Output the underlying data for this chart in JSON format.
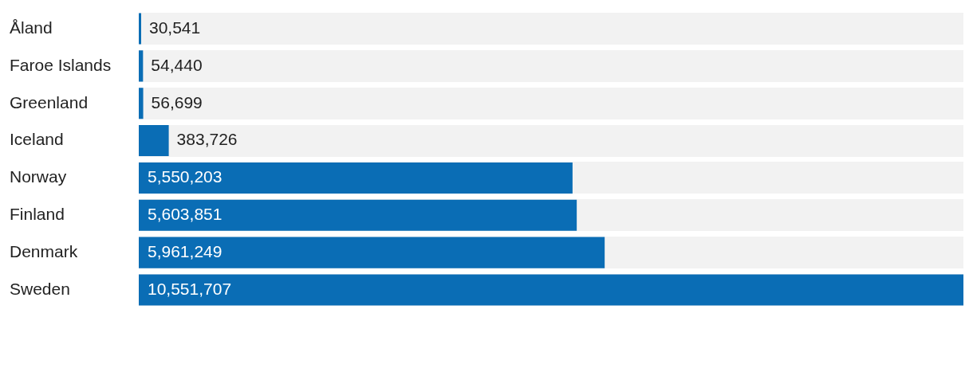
{
  "chart_data": {
    "type": "bar",
    "orientation": "horizontal",
    "legend": false,
    "tick_labels": "y",
    "categories": [
      "Åland",
      "Faroe Islands",
      "Greenland",
      "Iceland",
      "Norway",
      "Finland",
      "Denmark",
      "Sweden"
    ],
    "series": [
      {
        "color": "#0a6db5",
        "values": [
          30541,
          54440,
          56699,
          383726,
          5550203,
          5603851,
          5961249,
          10551707
        ],
        "value_labels": [
          "30,541",
          "54,440",
          "56,699",
          "383,726",
          "5,550,203",
          "5,603,851",
          "5,961,249",
          "10,551,707"
        ]
      }
    ]
  }
}
